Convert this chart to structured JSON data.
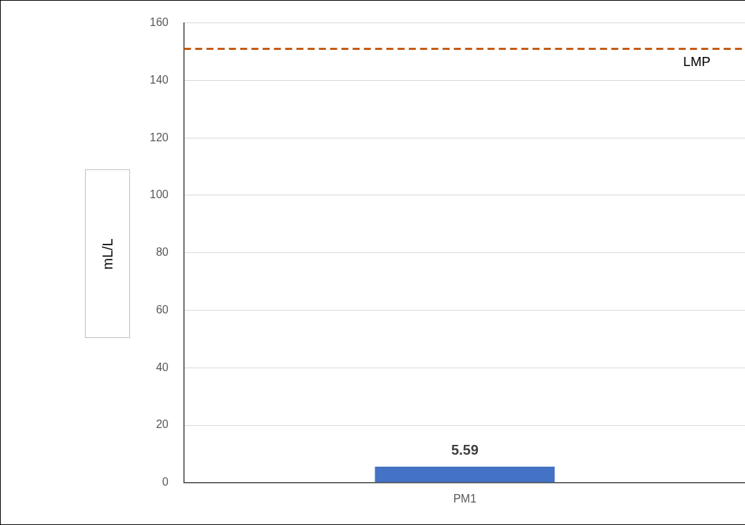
{
  "chart_data": {
    "type": "bar",
    "ylabel": "mL/L",
    "categories": [
      "PM1"
    ],
    "values": [
      5.59
    ],
    "color": "#4472c4",
    "ylim": [
      0,
      160
    ],
    "yticks": [
      0,
      20,
      40,
      60,
      80,
      100,
      120,
      140,
      160
    ],
    "grid": "y",
    "data_labels": true,
    "legend": false,
    "ref_lines": [
      {
        "axis": "y",
        "value": 151,
        "label": "LMP",
        "color": "#c55a11",
        "line_style": "dashed"
      }
    ]
  }
}
